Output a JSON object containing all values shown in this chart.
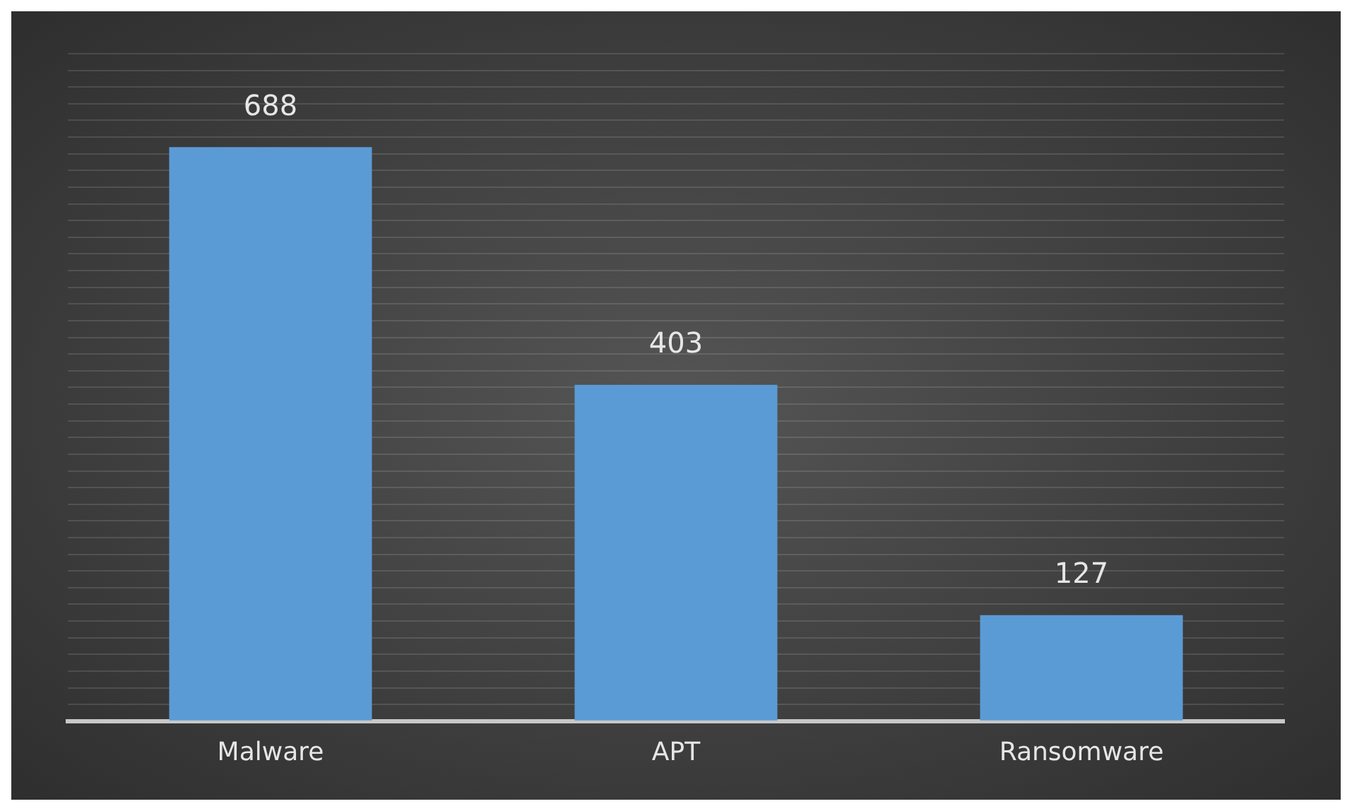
{
  "chart_data": {
    "type": "bar",
    "categories": [
      "Malware",
      "APT",
      "Ransomware"
    ],
    "values": [
      688,
      403,
      127
    ],
    "color": "#5b9bd5",
    "data_labels": true,
    "ylim": [
      0,
      800
    ],
    "yticks": [
      {
        "value": 0,
        "label": null
      },
      {
        "value": 20,
        "label": null
      },
      {
        "value": 40,
        "label": null
      },
      {
        "value": 60,
        "label": null
      },
      {
        "value": 80,
        "label": null
      },
      {
        "value": 100,
        "label": null
      },
      {
        "value": 120,
        "label": null
      },
      {
        "value": 140,
        "label": null
      },
      {
        "value": 160,
        "label": null
      },
      {
        "value": 180,
        "label": null
      },
      {
        "value": 200,
        "label": null
      },
      {
        "value": 220,
        "label": null
      },
      {
        "value": 240,
        "label": null
      },
      {
        "value": 260,
        "label": null
      },
      {
        "value": 280,
        "label": null
      },
      {
        "value": 300,
        "label": null
      },
      {
        "value": 320,
        "label": null
      },
      {
        "value": 340,
        "label": null
      },
      {
        "value": 360,
        "label": null
      },
      {
        "value": 380,
        "label": null
      },
      {
        "value": 400,
        "label": null
      },
      {
        "value": 420,
        "label": null
      },
      {
        "value": 440,
        "label": null
      },
      {
        "value": 460,
        "label": null
      },
      {
        "value": 480,
        "label": null
      },
      {
        "value": 500,
        "label": null
      },
      {
        "value": 520,
        "label": null
      },
      {
        "value": 540,
        "label": null
      },
      {
        "value": 560,
        "label": null
      },
      {
        "value": 580,
        "label": null
      },
      {
        "value": 600,
        "label": null
      },
      {
        "value": 620,
        "label": null
      },
      {
        "value": 640,
        "label": null
      },
      {
        "value": 660,
        "label": null
      },
      {
        "value": 680,
        "label": null
      },
      {
        "value": 700,
        "label": null
      },
      {
        "value": 720,
        "label": null
      },
      {
        "value": 740,
        "label": null
      },
      {
        "value": 760,
        "label": null
      },
      {
        "value": 780,
        "label": null
      },
      {
        "value": 800,
        "label": null
      }
    ],
    "grid": "y",
    "tick_labels": "x"
  }
}
